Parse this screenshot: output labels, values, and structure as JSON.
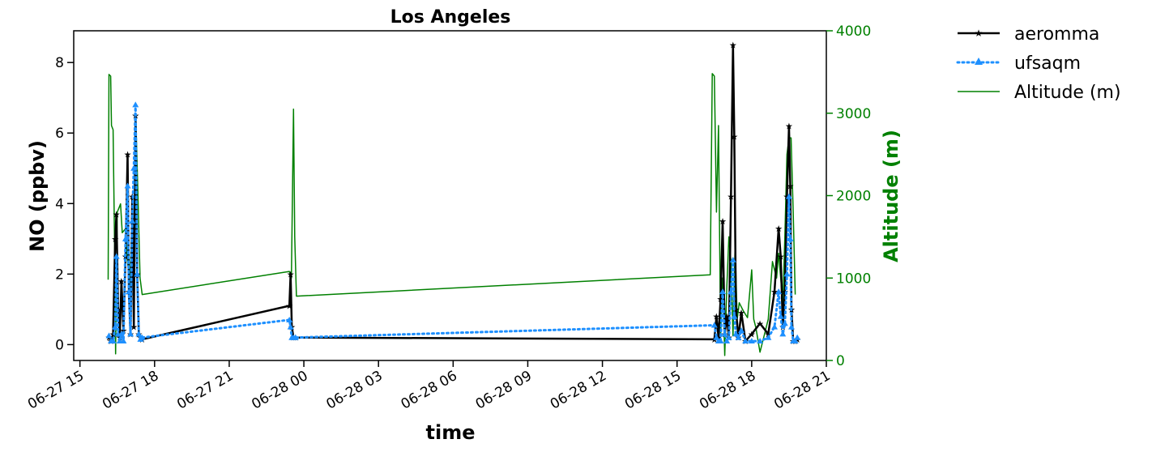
{
  "chart_data": {
    "type": "line",
    "title": "Los Angeles",
    "xlabel": "time",
    "ylabel": "NO (ppbv)",
    "ylabel_right": "Altitude (m)",
    "ylim": [
      -0.45,
      8.9
    ],
    "ylim_right": [
      0,
      4000
    ],
    "xlim": [
      "06-27 14:45",
      "06-28 21:00"
    ],
    "yticks": [
      0,
      2,
      4,
      6,
      8
    ],
    "yticks_right": [
      0,
      1000,
      2000,
      3000,
      4000
    ],
    "xticks": [
      "06-27 15",
      "06-27 18",
      "06-27 21",
      "06-28 00",
      "06-28 03",
      "06-28 06",
      "06-28 09",
      "06-28 12",
      "06-28 15",
      "06-28 18",
      "06-28 21"
    ],
    "legend_position": "outside-upper-right",
    "grid": false,
    "colors": {
      "aeromma": "#000000",
      "ufsaqm": "#1e90ff",
      "altitude": "#008000"
    },
    "series": [
      {
        "name": "aeromma",
        "axis": "left",
        "style": "solid",
        "marker": "star",
        "points": [
          [
            "06-27 16:10",
            0.2
          ],
          [
            "06-27 16:15",
            0.1
          ],
          [
            "06-27 16:20",
            0.3
          ],
          [
            "06-27 16:25",
            3.0
          ],
          [
            "06-27 16:28",
            3.7
          ],
          [
            "06-27 16:32",
            1.0
          ],
          [
            "06-27 16:36",
            0.2
          ],
          [
            "06-27 16:40",
            1.8
          ],
          [
            "06-27 16:45",
            0.4
          ],
          [
            "06-27 16:50",
            2.5
          ],
          [
            "06-27 16:55",
            5.4
          ],
          [
            "06-27 16:58",
            1.5
          ],
          [
            "06-27 17:02",
            0.3
          ],
          [
            "06-27 17:06",
            4.2
          ],
          [
            "06-27 17:10",
            0.5
          ],
          [
            "06-27 17:14",
            6.5
          ],
          [
            "06-27 17:18",
            2.0
          ],
          [
            "06-27 17:22",
            0.3
          ],
          [
            "06-27 17:26",
            0.2
          ],
          [
            "06-27 17:30",
            0.15
          ],
          [
            "06-27 23:25",
            1.1
          ],
          [
            "06-27 23:28",
            2.0
          ],
          [
            "06-27 23:31",
            0.5
          ],
          [
            "06-27 23:35",
            0.2
          ],
          [
            "06-27 23:40",
            0.2
          ],
          [
            "06-28 16:30",
            0.15
          ],
          [
            "06-28 16:35",
            0.8
          ],
          [
            "06-28 16:40",
            0.2
          ],
          [
            "06-28 16:45",
            1.3
          ],
          [
            "06-28 16:50",
            3.5
          ],
          [
            "06-28 16:55",
            0.3
          ],
          [
            "06-28 17:00",
            0.8
          ],
          [
            "06-28 17:05",
            0.2
          ],
          [
            "06-28 17:10",
            4.2
          ],
          [
            "06-28 17:15",
            8.5
          ],
          [
            "06-28 17:18",
            5.9
          ],
          [
            "06-28 17:22",
            1.0
          ],
          [
            "06-28 17:28",
            0.2
          ],
          [
            "06-28 17:35",
            0.9
          ],
          [
            "06-28 17:45",
            0.1
          ],
          [
            "06-28 18:00",
            0.3
          ],
          [
            "06-28 18:20",
            0.6
          ],
          [
            "06-28 18:40",
            0.3
          ],
          [
            "06-28 18:55",
            1.5
          ],
          [
            "06-28 19:05",
            3.3
          ],
          [
            "06-28 19:10",
            2.5
          ],
          [
            "06-28 19:15",
            0.5
          ],
          [
            "06-28 19:20",
            1.5
          ],
          [
            "06-28 19:25",
            4.2
          ],
          [
            "06-28 19:30",
            6.2
          ],
          [
            "06-28 19:33",
            4.5
          ],
          [
            "06-28 19:36",
            1.0
          ],
          [
            "06-28 19:40",
            0.1
          ],
          [
            "06-28 19:45",
            0.1
          ],
          [
            "06-28 19:50",
            0.15
          ]
        ]
      },
      {
        "name": "ufsaqm",
        "axis": "left",
        "style": "dotted",
        "marker": "triangle",
        "points": [
          [
            "06-27 16:10",
            0.25
          ],
          [
            "06-27 16:15",
            0.1
          ],
          [
            "06-27 16:20",
            0.1
          ],
          [
            "06-27 16:25",
            0.5
          ],
          [
            "06-27 16:28",
            2.5
          ],
          [
            "06-27 16:32",
            0.3
          ],
          [
            "06-27 16:36",
            0.1
          ],
          [
            "06-27 16:40",
            0.3
          ],
          [
            "06-27 16:45",
            0.1
          ],
          [
            "06-27 16:50",
            3.0
          ],
          [
            "06-27 16:55",
            4.5
          ],
          [
            "06-27 16:58",
            1.5
          ],
          [
            "06-27 17:02",
            0.3
          ],
          [
            "06-27 17:06",
            3.5
          ],
          [
            "06-27 17:10",
            5.0
          ],
          [
            "06-27 17:14",
            6.8
          ],
          [
            "06-27 17:18",
            2.0
          ],
          [
            "06-27 17:22",
            0.3
          ],
          [
            "06-27 17:26",
            0.15
          ],
          [
            "06-27 17:30",
            0.2
          ],
          [
            "06-27 23:25",
            0.7
          ],
          [
            "06-27 23:28",
            0.5
          ],
          [
            "06-27 23:31",
            0.2
          ],
          [
            "06-27 23:35",
            0.2
          ],
          [
            "06-27 23:40",
            0.2
          ],
          [
            "06-28 16:30",
            0.55
          ],
          [
            "06-28 16:35",
            0.2
          ],
          [
            "06-28 16:40",
            0.1
          ],
          [
            "06-28 16:45",
            0.1
          ],
          [
            "06-28 16:50",
            1.5
          ],
          [
            "06-28 16:55",
            0.3
          ],
          [
            "06-28 17:00",
            0.1
          ],
          [
            "06-28 17:05",
            0.2
          ],
          [
            "06-28 17:10",
            1.5
          ],
          [
            "06-28 17:15",
            2.4
          ],
          [
            "06-28 17:18",
            0.8
          ],
          [
            "06-28 17:22",
            0.3
          ],
          [
            "06-28 17:28",
            0.2
          ],
          [
            "06-28 17:35",
            0.4
          ],
          [
            "06-28 17:45",
            0.1
          ],
          [
            "06-28 18:00",
            0.1
          ],
          [
            "06-28 18:20",
            0.1
          ],
          [
            "06-28 18:40",
            0.2
          ],
          [
            "06-28 18:55",
            0.5
          ],
          [
            "06-28 19:05",
            1.5
          ],
          [
            "06-28 19:10",
            0.8
          ],
          [
            "06-28 19:15",
            0.3
          ],
          [
            "06-28 19:20",
            0.6
          ],
          [
            "06-28 19:25",
            2.0
          ],
          [
            "06-28 19:30",
            4.2
          ],
          [
            "06-28 19:33",
            3.0
          ],
          [
            "06-28 19:36",
            0.5
          ],
          [
            "06-28 19:40",
            0.1
          ],
          [
            "06-28 19:45",
            0.1
          ],
          [
            "06-28 19:50",
            0.2
          ]
        ]
      },
      {
        "name": "Altitude (m)",
        "axis": "right",
        "style": "solid",
        "marker": "none",
        "points": [
          [
            "06-27 16:08",
            980
          ],
          [
            "06-27 16:10",
            3470
          ],
          [
            "06-27 16:14",
            3450
          ],
          [
            "06-27 16:16",
            2850
          ],
          [
            "06-27 16:20",
            2800
          ],
          [
            "06-27 16:24",
            1200
          ],
          [
            "06-27 16:26",
            80
          ],
          [
            "06-27 16:30",
            1800
          ],
          [
            "06-27 16:34",
            1850
          ],
          [
            "06-27 16:38",
            1900
          ],
          [
            "06-27 16:42",
            1550
          ],
          [
            "06-27 16:50",
            1600
          ],
          [
            "06-27 16:55",
            1200
          ],
          [
            "06-27 17:00",
            900
          ],
          [
            "06-27 17:05",
            1600
          ],
          [
            "06-27 17:10",
            1500
          ],
          [
            "06-27 17:15",
            2900
          ],
          [
            "06-27 17:20",
            2000
          ],
          [
            "06-27 17:25",
            1000
          ],
          [
            "06-27 17:30",
            800
          ],
          [
            "06-27 23:25",
            1080
          ],
          [
            "06-27 23:30",
            1000
          ],
          [
            "06-27 23:35",
            3050
          ],
          [
            "06-27 23:38",
            1500
          ],
          [
            "06-27 23:42",
            780
          ],
          [
            "06-28 16:20",
            1040
          ],
          [
            "06-28 16:25",
            3480
          ],
          [
            "06-28 16:30",
            3450
          ],
          [
            "06-28 16:35",
            1800
          ],
          [
            "06-28 16:40",
            2850
          ],
          [
            "06-28 16:45",
            300
          ],
          [
            "06-28 16:50",
            1000
          ],
          [
            "06-28 16:55",
            60
          ],
          [
            "06-28 17:00",
            900
          ],
          [
            "06-28 17:05",
            1500
          ],
          [
            "06-28 17:10",
            1200
          ],
          [
            "06-28 17:15",
            300
          ],
          [
            "06-28 17:20",
            1400
          ],
          [
            "06-28 17:25",
            500
          ],
          [
            "06-28 17:30",
            700
          ],
          [
            "06-28 17:40",
            600
          ],
          [
            "06-28 17:50",
            520
          ],
          [
            "06-28 18:00",
            1100
          ],
          [
            "06-28 18:05",
            500
          ],
          [
            "06-28 18:10",
            400
          ],
          [
            "06-28 18:20",
            100
          ],
          [
            "06-28 18:30",
            300
          ],
          [
            "06-28 18:40",
            500
          ],
          [
            "06-28 18:50",
            1200
          ],
          [
            "06-28 19:00",
            1000
          ],
          [
            "06-28 19:05",
            1300
          ],
          [
            "06-28 19:15",
            700
          ],
          [
            "06-28 19:20",
            1500
          ],
          [
            "06-28 19:25",
            2500
          ],
          [
            "06-28 19:30",
            2700
          ],
          [
            "06-28 19:35",
            2700
          ],
          [
            "06-28 19:40",
            1800
          ],
          [
            "06-28 19:45",
            800
          ]
        ]
      }
    ]
  }
}
